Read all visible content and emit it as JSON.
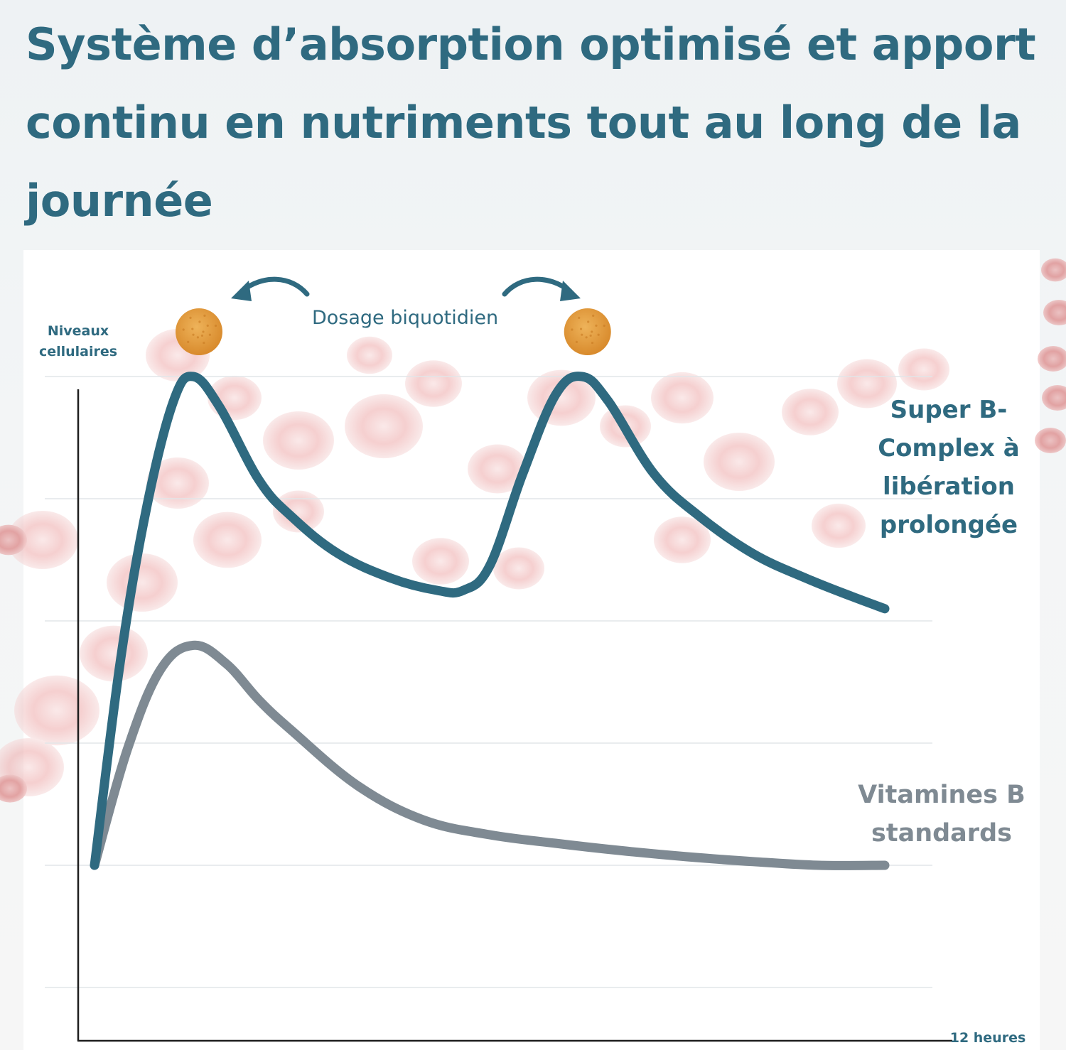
{
  "title": "Système d’absorption optimisé et apport continu en nutriments tout au long de la journée",
  "chart_data": {
    "type": "line",
    "ylabel": "Niveaux cellulaires",
    "xlabel": "12 heures",
    "annotation": "Dosage biquotidien",
    "xlim": [
      0,
      12
    ],
    "ylim": [
      0,
      5
    ],
    "grid": true,
    "dose_times": [
      1.5,
      7.4
    ],
    "series": [
      {
        "name": "Super B-Complex à libération prolongée",
        "color": "#2f6a80",
        "x": [
          0,
          0.4,
          0.8,
          1.2,
          1.5,
          1.9,
          2.5,
          3.0,
          3.7,
          4.5,
          5.2,
          5.6,
          6.0,
          6.5,
          7.0,
          7.4,
          7.8,
          8.5,
          9.2,
          10.0,
          10.8,
          11.5,
          12.0
        ],
        "y": [
          1.0,
          2.7,
          3.95,
          4.8,
          5.0,
          4.75,
          4.15,
          3.85,
          3.55,
          3.35,
          3.25,
          3.25,
          3.45,
          4.2,
          4.85,
          5.0,
          4.8,
          4.2,
          3.85,
          3.55,
          3.35,
          3.2,
          3.1
        ]
      },
      {
        "name": "Vitamines B standards",
        "color": "#7f8a93",
        "x": [
          0,
          0.5,
          1.0,
          1.5,
          2.0,
          2.5,
          3.0,
          4.0,
          5.0,
          6.0,
          7.0,
          8.0,
          9.0,
          10.0,
          11.0,
          12.0
        ],
        "y": [
          1.0,
          1.95,
          2.6,
          2.8,
          2.65,
          2.35,
          2.1,
          1.65,
          1.37,
          1.25,
          1.18,
          1.12,
          1.07,
          1.03,
          1.0,
          1.0
        ]
      }
    ],
    "legend": {
      "super_lines": [
        "Super B-",
        "Complex à",
        "libération",
        "prolongée"
      ],
      "standard_lines": [
        "Vitamines B",
        "standards"
      ]
    }
  },
  "colors": {
    "accent": "#2f6a80",
    "grey": "#7f8a93",
    "tablet": "#e09b3d",
    "background_cells": "#d86a6a"
  }
}
